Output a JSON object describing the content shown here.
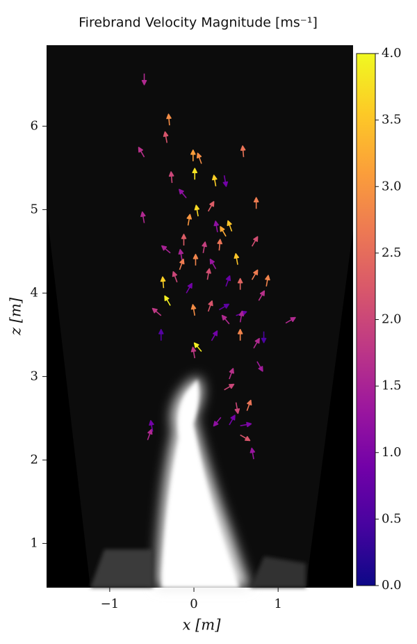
{
  "chart_data": {
    "type": "quiver",
    "title": "Firebrand Velocity Magnitude [ms⁻¹]",
    "x_label": "x [m]",
    "y_label": "z [m]",
    "xlim": [
      -1.75,
      1.89
    ],
    "ylim": [
      0.47,
      6.97
    ],
    "xticks": [
      {
        "value": -1,
        "label": "−1"
      },
      0,
      1
    ],
    "yticks": [
      1,
      2,
      3,
      4,
      5,
      6
    ],
    "colormap": "plasma",
    "clim": [
      0,
      4
    ],
    "cticks": [
      {
        "value": 0,
        "label": "0.0"
      },
      0.5,
      {
        "value": 1,
        "label": "1.0"
      },
      1.5,
      {
        "value": 2,
        "label": "2.0"
      },
      2.5,
      {
        "value": 3,
        "label": "3.0"
      },
      3.5,
      {
        "value": 4,
        "label": "4.0"
      }
    ],
    "x": [
      -0.59,
      -0.29,
      -0.32,
      -0.59,
      -0.26,
      0.01,
      0.09,
      -0.01,
      0.36,
      0.59,
      0.26,
      -0.09,
      0.17,
      0.05,
      0.74,
      -0.59,
      -0.07,
      0.38,
      -0.28,
      -0.12,
      0.11,
      0.3,
      0.52,
      0.69,
      0.02,
      0.16,
      0.26,
      -0.14,
      -0.36,
      -0.2,
      -0.09,
      -0.28,
      0.38,
      0.55,
      0.69,
      0.86,
      0.77,
      -0.39,
      0.01,
      0.17,
      0.3,
      0.5,
      0.42,
      0.55,
      1.09,
      0.83,
      -0.39,
      0.09,
      0.21,
      0.55,
      0.71,
      0.75,
      0.01,
      0.42,
      0.36,
      0.5,
      0.63,
      0.32,
      0.42,
      0.55,
      0.55,
      -0.55,
      -0.49,
      0.71,
      -0.17,
      0.28,
      0.45
    ],
    "y": [
      6.63,
      6.01,
      5.8,
      5.63,
      5.32,
      5.36,
      5.55,
      5.58,
      5.41,
      5.63,
      5.28,
      5.14,
      4.98,
      4.92,
      5.01,
      4.84,
      4.81,
      4.68,
      4.48,
      4.57,
      4.48,
      4.51,
      4.34,
      4.56,
      4.33,
      4.16,
      4.29,
      4.39,
      4.06,
      4.13,
      4.0,
      3.85,
      4.08,
      4.04,
      4.16,
      4.08,
      3.91,
      3.73,
      3.73,
      3.78,
      3.8,
      3.73,
      3.63,
      3.65,
      3.64,
      3.54,
      3.43,
      3.3,
      3.43,
      3.43,
      3.34,
      3.18,
      3.22,
      2.97,
      2.84,
      2.69,
      2.59,
      2.51,
      2.42,
      2.41,
      2.3,
      2.24,
      2.34,
      2.01,
      4.28,
      4.73,
      4.74
    ],
    "values": [
      1.6,
      2.9,
      2.2,
      1.7,
      2.0,
      3.8,
      2.9,
      3.1,
      0.9,
      2.6,
      3.6,
      1.2,
      2.3,
      3.7,
      2.7,
      1.6,
      3.0,
      3.2,
      1.5,
      2.3,
      1.9,
      2.6,
      3.5,
      2.1,
      2.8,
      2.1,
      1.3,
      1.5,
      3.6,
      2.0,
      0.9,
      3.9,
      0.8,
      2.4,
      2.7,
      2.8,
      1.7,
      1.8,
      2.9,
      2.2,
      0.7,
      0.8,
      1.6,
      1.5,
      1.6,
      0.5,
      0.6,
      3.9,
      0.9,
      2.8,
      1.6,
      1.4,
      1.8,
      1.7,
      2.0,
      2.0,
      2.6,
      1.2,
      0.9,
      1.0,
      2.2,
      1.6,
      0.9,
      1.3,
      2.7,
      1.2,
      3.5
    ],
    "directions": [
      -90,
      95,
      100,
      120,
      95,
      90,
      110,
      90,
      -80,
      95,
      100,
      130,
      60,
      100,
      90,
      100,
      80,
      120,
      140,
      90,
      80,
      85,
      100,
      60,
      90,
      80,
      120,
      100,
      95,
      110,
      60,
      120,
      70,
      90,
      60,
      80,
      60,
      140,
      100,
      70,
      30,
      20,
      130,
      80,
      30,
      -90,
      90,
      130,
      60,
      90,
      60,
      -60,
      100,
      70,
      30,
      -80,
      70,
      -130,
      60,
      10,
      -30,
      70,
      100,
      100,
      70,
      100,
      110
    ]
  }
}
